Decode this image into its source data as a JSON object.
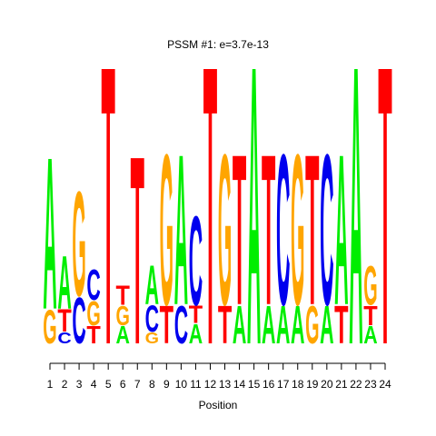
{
  "chart_data": {
    "type": "logo",
    "title": "PSSM #1: e=3.7e-13",
    "title_color": "#00dd00",
    "xlabel": "Position",
    "xticks": [
      1,
      2,
      3,
      4,
      5,
      6,
      7,
      8,
      9,
      10,
      11,
      12,
      13,
      14,
      15,
      16,
      17,
      18,
      19,
      20,
      21,
      22,
      23,
      24
    ],
    "ylim": [
      0,
      2
    ],
    "colors": {
      "A": "#00ee00",
      "C": "#0000ee",
      "G": "#ffa500",
      "T": "#ff0000"
    },
    "stacks": [
      {
        "letters": [
          "G",
          "A"
        ],
        "heights": [
          0.24,
          1.09
        ]
      },
      {
        "letters": [
          "C",
          "T",
          "A"
        ],
        "heights": [
          0.08,
          0.16,
          0.38
        ]
      },
      {
        "letters": [
          "C",
          "G"
        ],
        "heights": [
          0.33,
          0.75
        ]
      },
      {
        "letters": [
          "T",
          "G",
          "C"
        ],
        "heights": [
          0.125,
          0.175,
          0.22
        ]
      },
      {
        "letters": [
          "T"
        ],
        "heights": [
          2.0
        ]
      },
      {
        "letters": [
          "A",
          "G",
          "T"
        ],
        "heights": [
          0.125,
          0.14,
          0.14
        ]
      },
      {
        "letters": [
          "T"
        ],
        "heights": [
          1.35
        ]
      },
      {
        "letters": [
          "G",
          "C",
          "A"
        ],
        "heights": [
          0.08,
          0.19,
          0.28
        ]
      },
      {
        "letters": [
          "T",
          "G"
        ],
        "heights": [
          0.27,
          1.08
        ]
      },
      {
        "letters": [
          "C",
          "A"
        ],
        "heights": [
          0.27,
          1.08
        ]
      },
      {
        "letters": [
          "A",
          "T",
          "C"
        ],
        "heights": [
          0.14,
          0.125,
          0.64
        ]
      },
      {
        "letters": [
          "T"
        ],
        "heights": [
          2.0
        ]
      },
      {
        "letters": [
          "T",
          "G"
        ],
        "heights": [
          0.27,
          1.08
        ]
      },
      {
        "letters": [
          "A",
          "T"
        ],
        "heights": [
          0.27,
          1.08
        ]
      },
      {
        "letters": [
          "A"
        ],
        "heights": [
          2.0
        ]
      },
      {
        "letters": [
          "A",
          "T"
        ],
        "heights": [
          0.27,
          1.08
        ]
      },
      {
        "letters": [
          "A",
          "C"
        ],
        "heights": [
          0.27,
          1.08
        ]
      },
      {
        "letters": [
          "A",
          "G"
        ],
        "heights": [
          0.27,
          1.08
        ]
      },
      {
        "letters": [
          "G",
          "T"
        ],
        "heights": [
          0.27,
          1.08
        ]
      },
      {
        "letters": [
          "A",
          "C"
        ],
        "heights": [
          0.27,
          1.08
        ]
      },
      {
        "letters": [
          "T",
          "A"
        ],
        "heights": [
          0.27,
          1.08
        ]
      },
      {
        "letters": [
          "A"
        ],
        "heights": [
          2.0
        ]
      },
      {
        "letters": [
          "A",
          "T",
          "G"
        ],
        "heights": [
          0.125,
          0.14,
          0.28
        ]
      },
      {
        "letters": [
          "T"
        ],
        "heights": [
          2.0
        ]
      }
    ]
  }
}
